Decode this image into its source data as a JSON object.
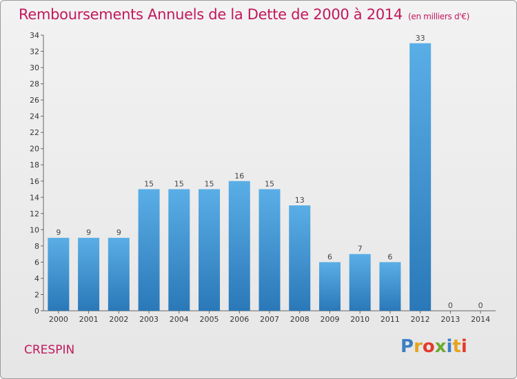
{
  "header": {
    "title": "Remboursements Annuels de la Dette de 2000 à 2014",
    "subtitle": "(en milliers d'€)"
  },
  "footer": {
    "commune": "CRESPIN",
    "logo": "Proxiti"
  },
  "colors": {
    "accent": "#c2185b",
    "bar_top": "#5aaee6",
    "bar_bottom": "#2a78b8"
  },
  "chart_data": {
    "type": "bar",
    "title": "Remboursements Annuels de la Dette de 2000 à 2014",
    "ylabel": "(en milliers d'€)",
    "xlabel": "",
    "categories": [
      "2000",
      "2001",
      "2002",
      "2003",
      "2004",
      "2005",
      "2006",
      "2007",
      "2008",
      "2009",
      "2010",
      "2011",
      "2012",
      "2013",
      "2014"
    ],
    "values": [
      9,
      9,
      9,
      15,
      15,
      15,
      16,
      15,
      13,
      6,
      7,
      6,
      33,
      0,
      0
    ],
    "ylim": [
      0,
      34
    ],
    "yticks": [
      0,
      2,
      4,
      6,
      8,
      10,
      12,
      14,
      16,
      18,
      20,
      22,
      24,
      26,
      28,
      30,
      32,
      34
    ],
    "grid": false,
    "legend": "none"
  }
}
